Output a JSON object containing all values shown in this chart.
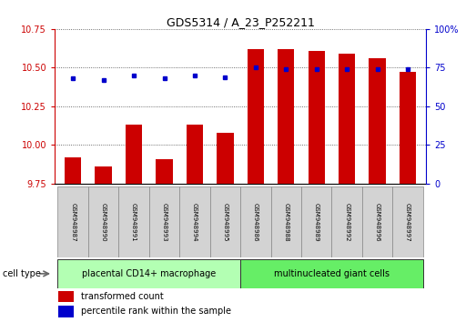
{
  "title": "GDS5314 / A_23_P252211",
  "samples": [
    "GSM948987",
    "GSM948990",
    "GSM948991",
    "GSM948993",
    "GSM948994",
    "GSM948995",
    "GSM948986",
    "GSM948988",
    "GSM948989",
    "GSM948992",
    "GSM948996",
    "GSM948997"
  ],
  "transformed_count": [
    9.92,
    9.86,
    10.13,
    9.91,
    10.13,
    10.08,
    10.62,
    10.62,
    10.61,
    10.59,
    10.56,
    10.47
  ],
  "percentile_rank": [
    68,
    67,
    70,
    68,
    70,
    69,
    75,
    74,
    74,
    74,
    74,
    74
  ],
  "groups": [
    {
      "label": "placental CD14+ macrophage",
      "start": 0,
      "end": 6,
      "color": "#b3ffb3"
    },
    {
      "label": "multinucleated giant cells",
      "start": 6,
      "end": 12,
      "color": "#66ee66"
    }
  ],
  "ylim_left": [
    9.75,
    10.75
  ],
  "ylim_right": [
    0,
    100
  ],
  "yticks_left": [
    9.75,
    10.0,
    10.25,
    10.5,
    10.75
  ],
  "yticks_right": [
    0,
    25,
    50,
    75,
    100
  ],
  "bar_color": "#cc0000",
  "dot_color": "#0000cc",
  "bar_width": 0.55,
  "background_color": "#ffffff",
  "cell_type_label": "cell type",
  "legend_bar_label": "transformed count",
  "legend_dot_label": "percentile rank within the sample",
  "title_fontsize": 9,
  "tick_fontsize": 7,
  "sample_fontsize": 5,
  "group_fontsize": 7,
  "legend_fontsize": 7
}
